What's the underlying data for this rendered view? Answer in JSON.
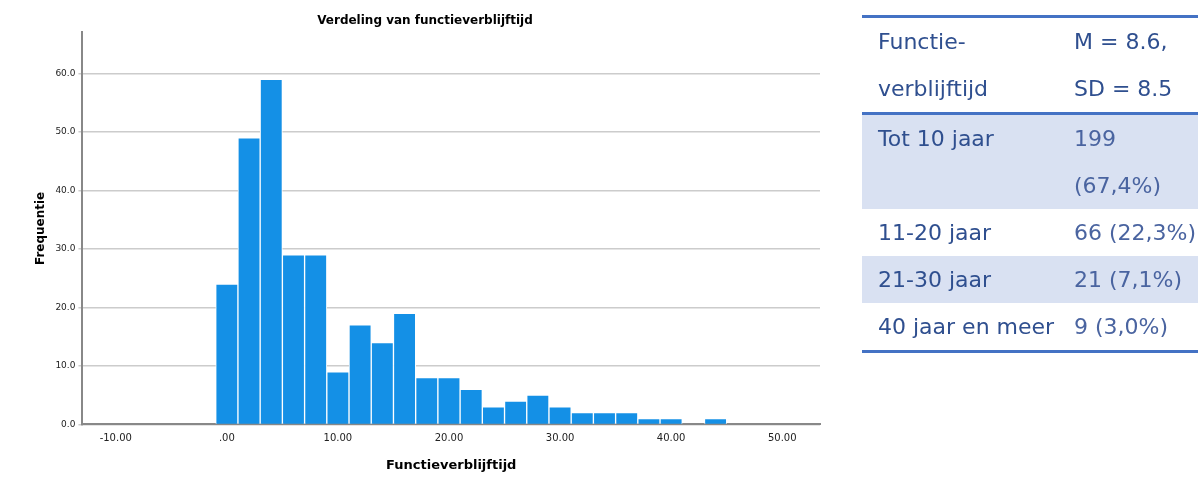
{
  "chart_data": [
    {
      "type": "histogram",
      "title": "Verdeling van functieverblijftijd",
      "xlabel": "Functieverblijftijd",
      "ylabel": "Frequentie",
      "color": "#1490e6",
      "bins": [
        -1,
        1,
        3,
        5,
        7,
        9,
        11,
        13,
        15,
        17,
        19,
        21,
        23,
        25,
        27,
        29,
        31,
        33,
        35,
        37,
        39,
        41,
        43,
        45
      ],
      "values": [
        24,
        49,
        59,
        29,
        29,
        9,
        17,
        14,
        19,
        8,
        8,
        6,
        3,
        4,
        5,
        3,
        2,
        2,
        2,
        1,
        1,
        0,
        1
      ],
      "xlim": [
        -13,
        53.4
      ],
      "ylim": [
        0,
        67
      ],
      "xticks": [
        {
          "value": -10,
          "label": "-10.00"
        },
        {
          "value": 0,
          "label": ".00"
        },
        {
          "value": 10,
          "label": "10.00"
        },
        {
          "value": 20,
          "label": "20.00"
        },
        {
          "value": 30,
          "label": "30.00"
        },
        {
          "value": 40,
          "label": "40.00"
        },
        {
          "value": 50,
          "label": "50.00"
        }
      ],
      "yticks": [
        {
          "value": 0,
          "label": "0.0"
        },
        {
          "value": 10,
          "label": "10.0"
        },
        {
          "value": 20,
          "label": "20.0"
        },
        {
          "value": 30,
          "label": "30.0"
        },
        {
          "value": 40,
          "label": "40.0"
        },
        {
          "value": 50,
          "label": "50.0"
        },
        {
          "value": 60,
          "label": "60.0"
        }
      ],
      "grid": "y"
    },
    {
      "type": "other",
      "annotations": [
        "Functie-verblijftijd",
        "M = 8.6, SD = 8.5",
        "Tot 10 jaar",
        "199 (67,4%)",
        "11-20 jaar",
        "66 (22,3%)",
        "21-30 jaar",
        "21 (7,1%)",
        "40 jaar en meer",
        "9 (3,0%)"
      ]
    }
  ]
}
